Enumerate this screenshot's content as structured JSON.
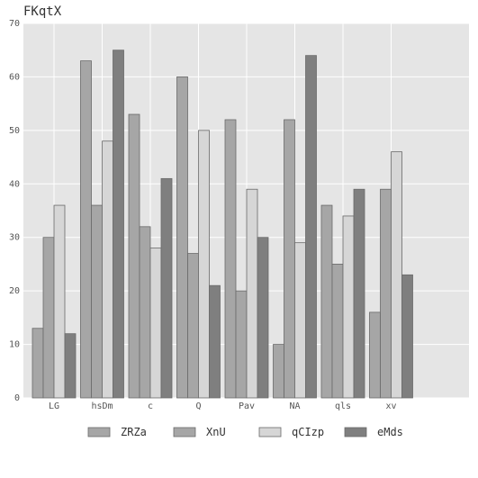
{
  "chart_data": {
    "type": "bar",
    "title": "FKqtX",
    "xlabel": "",
    "ylabel": "",
    "categories": [
      "LG",
      "hsDm",
      "c",
      "Q",
      "Pav",
      "NA",
      "qls",
      "xv"
    ],
    "ylim": [
      0,
      70
    ],
    "yticks": [
      0,
      10,
      20,
      30,
      40,
      50,
      60,
      70
    ],
    "grid": true,
    "legend_position": "bottom",
    "series": [
      {
        "name": "ZRZa",
        "color": "#a6a6a6",
        "values": [
          13,
          63,
          53,
          60,
          52,
          10,
          36,
          16
        ]
      },
      {
        "name": "XnU",
        "color": "#a6a6a6",
        "values": [
          30,
          36,
          32,
          27,
          20,
          52,
          25,
          39
        ]
      },
      {
        "name": "qCIzp",
        "color": "#d6d6d6",
        "values": [
          36,
          48,
          28,
          50,
          39,
          29,
          34,
          46
        ]
      },
      {
        "name": "eMds",
        "color": "#7f7f7f",
        "values": [
          12,
          65,
          41,
          21,
          30,
          64,
          39,
          23
        ]
      }
    ],
    "background": "#e5e5e5",
    "grid_color": "#ffffff"
  }
}
